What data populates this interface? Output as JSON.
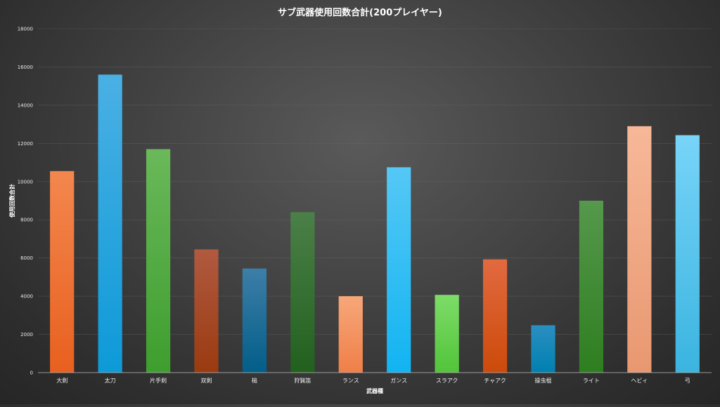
{
  "chart_data": {
    "type": "bar",
    "title": "サブ武器使用回数合計(200プレイヤー)",
    "xlabel": "武器種",
    "ylabel": "使用回数合計",
    "ylim": [
      0,
      18000
    ],
    "yticks": [
      0,
      2000,
      4000,
      6000,
      8000,
      10000,
      12000,
      14000,
      16000,
      18000
    ],
    "grid": true,
    "legend": "none",
    "categories": [
      "大剣",
      "太刀",
      "片手剣",
      "双剣",
      "槌",
      "狩猟笛",
      "ランス",
      "ガンス",
      "スラアク",
      "チャアク",
      "操虫棍",
      "ライト",
      "ヘビィ",
      "弓"
    ],
    "values": [
      10550,
      15600,
      11700,
      6450,
      5450,
      8400,
      4000,
      10750,
      4070,
      5930,
      2480,
      9000,
      12900,
      12430
    ],
    "colors": [
      [
        "#f3874e",
        "#e8601f"
      ],
      [
        "#4ab0e4",
        "#0d9ad8"
      ],
      [
        "#6ab85a",
        "#3e9e2e"
      ],
      [
        "#b05a40",
        "#9a3a10"
      ],
      [
        "#3d7ea8",
        "#025e88"
      ],
      [
        "#4b8048",
        "#22601e"
      ],
      [
        "#f7a77a",
        "#f07f48"
      ],
      [
        "#55c8f5",
        "#12b4f2"
      ],
      [
        "#7ddc68",
        "#52c43a"
      ],
      [
        "#e26a40",
        "#cc4a0a"
      ],
      [
        "#2a8fc0",
        "#0080b0"
      ],
      [
        "#56984c",
        "#2e7e20"
      ],
      [
        "#f7b898",
        "#e89870"
      ],
      [
        "#78d4f8",
        "#3ab4e0"
      ]
    ]
  }
}
